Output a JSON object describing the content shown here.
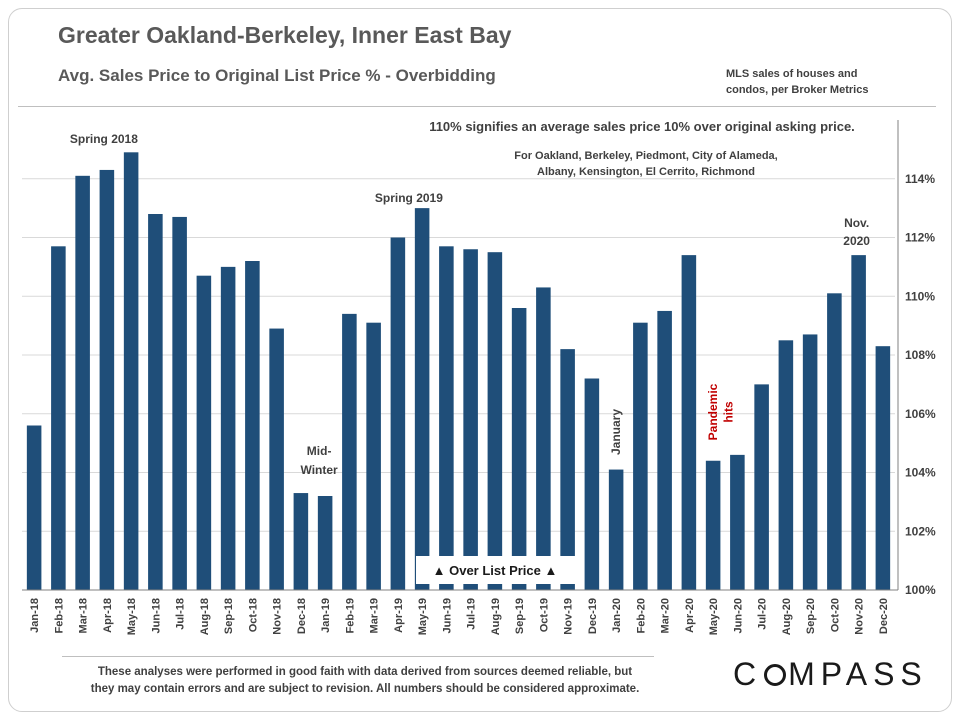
{
  "header": {
    "title": "Greater Oakland-Berkeley, Inner East Bay",
    "subtitle": "Avg. Sales Price to Original  List Price % - Overbidding",
    "source_line1": "MLS sales of houses and",
    "source_line2": "condos,  per Broker Metrics"
  },
  "footer": {
    "disclaimer_line1": "These analyses were performed in good faith with data derived from sources deemed reliable, but",
    "disclaimer_line2": "they may contain  errors and are subject to revision.  All numbers should be considered  approximate.",
    "logo": "COMPASS"
  },
  "colors": {
    "bar": "#1f4e79",
    "text": "#404040",
    "pandemic": "#c00000",
    "grid": "#d9d9d9"
  },
  "chart_data": {
    "type": "bar",
    "categories": [
      "Jan-18",
      "Feb-18",
      "Mar-18",
      "Apr-18",
      "May-18",
      "Jun-18",
      "Jul-18",
      "Aug-18",
      "Sep-18",
      "Oct-18",
      "Nov-18",
      "Dec-18",
      "Jan-19",
      "Feb-19",
      "Mar-19",
      "Apr-19",
      "May-19",
      "Jun-19",
      "Jul-19",
      "Aug-19",
      "Sep-19",
      "Oct-19",
      "Nov-19",
      "Dec-19",
      "Jan-20",
      "Feb-20",
      "Mar-20",
      "Apr-20",
      "May-20",
      "Jun-20",
      "Jul-20",
      "Aug-20",
      "Sep-20",
      "Oct-20",
      "Nov-20",
      "Dec-20"
    ],
    "values": [
      105.6,
      111.7,
      114.1,
      114.3,
      114.9,
      112.8,
      112.7,
      110.7,
      111.0,
      111.2,
      108.9,
      103.3,
      103.2,
      109.4,
      109.1,
      112.0,
      113.0,
      111.7,
      111.6,
      111.5,
      109.6,
      110.3,
      108.2,
      107.2,
      104.1,
      109.1,
      109.5,
      111.4,
      104.4,
      104.6,
      107.0,
      108.5,
      108.7,
      110.1,
      111.4,
      108.3
    ],
    "ylim": [
      100,
      116
    ],
    "ytick_values": [
      100,
      102,
      104,
      106,
      108,
      110,
      112,
      114
    ],
    "ytick_labels": [
      "100%",
      "102%",
      "104%",
      "106%",
      "108%",
      "110%",
      "112%",
      "114%"
    ],
    "y_axis_position": "right",
    "grid": true,
    "annotations": {
      "explain": "110% signifies an average sales price 10% over original asking price.",
      "areas_line1": "For Oakland,  Berkeley, Piedmont, City of Alameda,",
      "areas_line2": "Albany,  Kensington, El Cerrito, Richmond",
      "spring2018": "Spring 2018",
      "spring2019": "Spring 2019",
      "midwinter_line1": "Mid-",
      "midwinter_line2": "Winter",
      "january": "January",
      "pandemic_line1": "Pandemic",
      "pandemic_line2": "hits",
      "nov2020_line1": "Nov.",
      "nov2020_line2": "2020",
      "over_list": "▲ Over List Price ▲"
    }
  }
}
